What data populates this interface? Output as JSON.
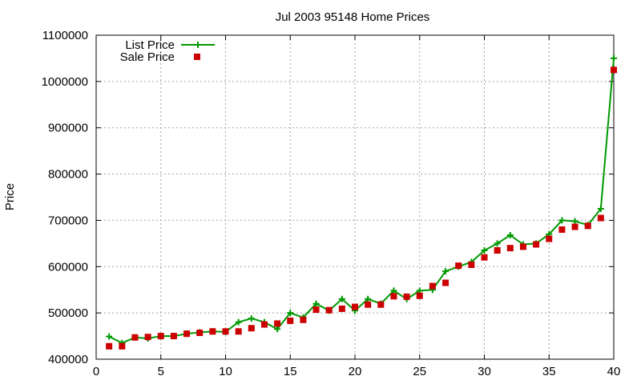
{
  "chart_data": {
    "type": "line",
    "title": "Jul 2003 95148 Home Prices",
    "xlabel": "",
    "ylabel": "Price",
    "xlim": [
      0,
      40
    ],
    "ylim": [
      400000,
      1100000
    ],
    "xticks": [
      0,
      5,
      10,
      15,
      20,
      25,
      30,
      35,
      40
    ],
    "yticks": [
      400000,
      500000,
      600000,
      700000,
      800000,
      900000,
      1000000,
      1100000
    ],
    "grid": true,
    "legend_position": "top-left",
    "x": [
      1,
      2,
      3,
      4,
      5,
      6,
      7,
      8,
      9,
      10,
      11,
      12,
      13,
      14,
      15,
      16,
      17,
      18,
      19,
      20,
      21,
      22,
      23,
      24,
      25,
      26,
      27,
      28,
      29,
      30,
      31,
      32,
      33,
      34,
      35,
      36,
      37,
      38,
      39,
      40
    ],
    "series": [
      {
        "name": "List Price",
        "style": "line-plus",
        "color": "#009900",
        "values": [
          449000,
          435000,
          447000,
          445000,
          450000,
          450000,
          455000,
          458000,
          460000,
          459000,
          480000,
          488000,
          480000,
          465000,
          500000,
          490000,
          520000,
          505000,
          530000,
          505000,
          530000,
          520000,
          548000,
          530000,
          548000,
          550000,
          590000,
          600000,
          610000,
          635000,
          650000,
          668000,
          648000,
          650000,
          670000,
          700000,
          698000,
          690000,
          725000,
          1050000
        ]
      },
      {
        "name": "Sale Price",
        "style": "square-markers",
        "color": "#cc0000",
        "values": [
          428000,
          428000,
          447000,
          448000,
          450000,
          450000,
          455000,
          457000,
          460000,
          460000,
          460000,
          467000,
          475000,
          477000,
          483000,
          485000,
          507000,
          506000,
          509000,
          513000,
          518000,
          518000,
          536000,
          535000,
          537000,
          558000,
          565000,
          602000,
          604000,
          620000,
          635000,
          640000,
          643000,
          648000,
          660000,
          680000,
          686000,
          688000,
          705000,
          1025000
        ]
      }
    ]
  }
}
